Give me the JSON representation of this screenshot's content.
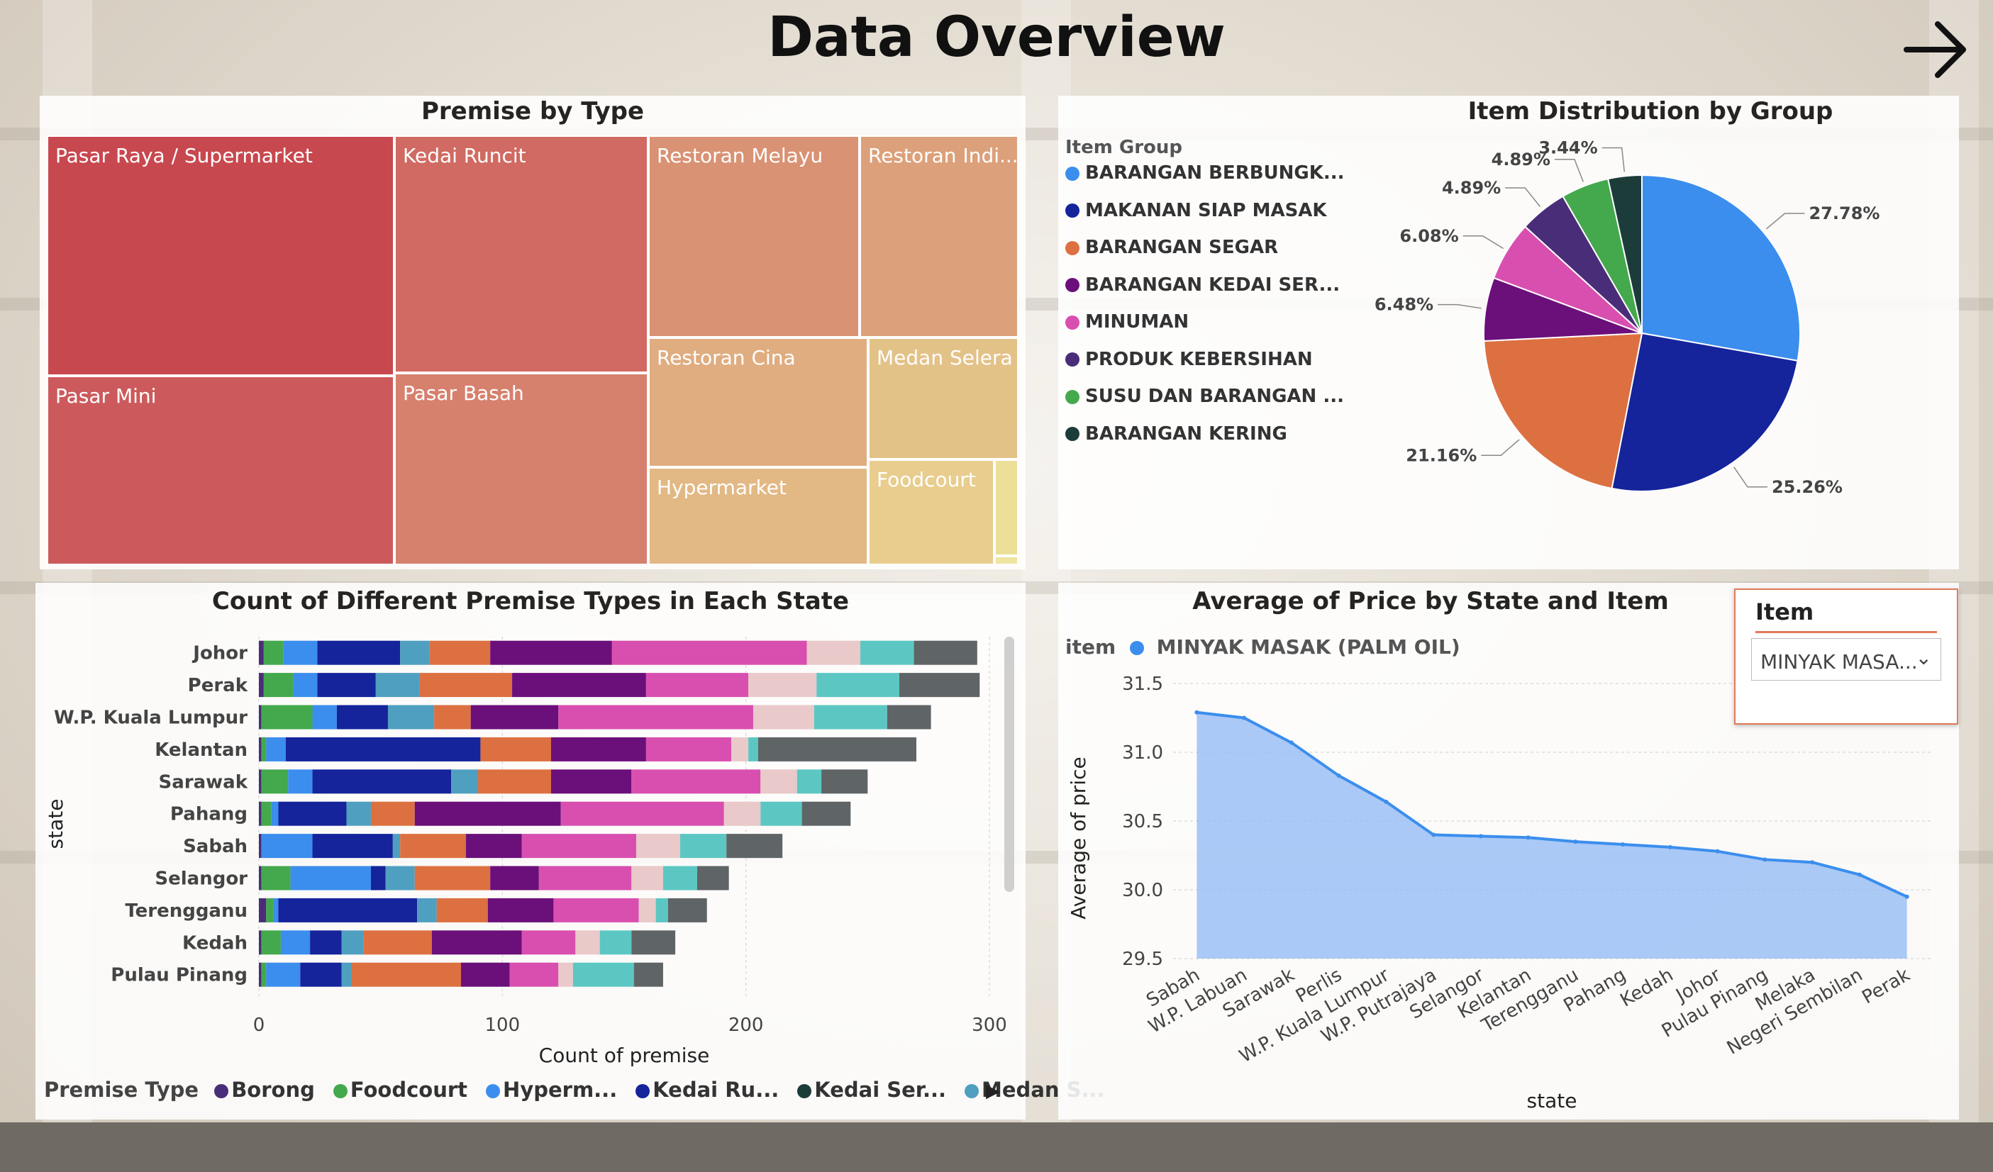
{
  "page_title": "Data Overview",
  "treemap": {
    "title": "Premise by Type",
    "cells": [
      {
        "label": "Pasar Raya / Supermarket",
        "color": "#c8484f"
      },
      {
        "label": "Pasar Mini",
        "color": "#cc5a5c"
      },
      {
        "label": "Kedai Runcit",
        "color": "#d06a62"
      },
      {
        "label": "Pasar Basah",
        "color": "#d6806e"
      },
      {
        "label": "Restoran Melayu",
        "color": "#d99274"
      },
      {
        "label": "Restoran Indi...",
        "color": "#dca07a"
      },
      {
        "label": "Restoran Cina",
        "color": "#dfad80"
      },
      {
        "label": "Medan Selera",
        "color": "#e3c288"
      },
      {
        "label": "Hypermarket",
        "color": "#e2b884"
      },
      {
        "label": "Foodcourt",
        "color": "#e8cd8e"
      },
      {
        "label": "",
        "color": "#ecdf98"
      },
      {
        "label": "",
        "color": "#efe4a0"
      }
    ]
  },
  "pie": {
    "title": "Item Distribution by Group",
    "legend_title": "Item Group",
    "legend": [
      {
        "label": "BARANGAN BERBUNGK...",
        "color": "#3b8eed"
      },
      {
        "label": "MAKANAN SIAP MASAK",
        "color": "#15249b"
      },
      {
        "label": "BARANGAN SEGAR",
        "color": "#dd7040"
      },
      {
        "label": "BARANGAN KEDAI SER...",
        "color": "#6b0f7a"
      },
      {
        "label": "MINUMAN",
        "color": "#d94fb0"
      },
      {
        "label": "PRODUK KEBERSIHAN",
        "color": "#4a2d78"
      },
      {
        "label": "SUSU DAN BARANGAN ...",
        "color": "#43a94c"
      },
      {
        "label": "BARANGAN KERING",
        "color": "#1c3c3a"
      }
    ]
  },
  "bar": {
    "title": "Count of Different Premise Types in Each State",
    "xlabel": "Count of premise",
    "ylabel": "state",
    "legend_title": "Premise Type",
    "legend": [
      {
        "label": "Borong",
        "color": "#4a2d78"
      },
      {
        "label": "Foodcourt",
        "color": "#43a94c"
      },
      {
        "label": "Hyperm...",
        "color": "#3b8eed"
      },
      {
        "label": "Kedai Ru...",
        "color": "#15249b"
      },
      {
        "label": "Kedai Ser...",
        "color": "#1c3c3a"
      },
      {
        "label": "Medan S...",
        "color": "#4f9fc0"
      }
    ]
  },
  "line": {
    "title": "Average of Price by State and Item",
    "legend_title": "item",
    "legend_item": "MINYAK MASAK (PALM OIL)",
    "xlabel": "state",
    "ylabel": "Average of price",
    "color": "#3b8eed"
  },
  "slicer": {
    "title": "Item",
    "value": "MINYAK MASA..."
  },
  "chart_data": [
    {
      "type": "treemap",
      "title": "Premise by Type",
      "categories": [
        "Pasar Raya / Supermarket",
        "Kedai Runcit",
        "Pasar Mini",
        "Pasar Basah",
        "Restoran Melayu",
        "Restoran Indi...",
        "Restoran Cina",
        "Hypermarket",
        "Medan Selera",
        "Foodcourt"
      ]
    },
    {
      "type": "pie",
      "title": "Item Distribution by Group",
      "categories": [
        "BARANGAN BERBUNGK...",
        "MAKANAN SIAP MASAK",
        "BARANGAN SEGAR",
        "BARANGAN KEDAI SER...",
        "MINUMAN",
        "PRODUK KEBERSIHAN",
        "SUSU DAN BARANGAN ...",
        "BARANGAN KERING"
      ],
      "values": [
        27.78,
        25.26,
        21.16,
        6.48,
        6.08,
        4.89,
        4.89,
        3.44
      ],
      "labels": [
        "27.78%",
        "25.26%",
        "21.16%",
        "6.48%",
        "6.08%",
        "4.89%",
        "4.89%",
        "3.44%"
      ],
      "colors": [
        "#3b8eed",
        "#15249b",
        "#dd7040",
        "#6b0f7a",
        "#d94fb0",
        "#4a2d78",
        "#43a94c",
        "#1c3c3a"
      ]
    },
    {
      "type": "bar",
      "orientation": "horizontal",
      "stacked": true,
      "title": "Count of Different Premise Types in Each State",
      "xlabel": "Count of premise",
      "ylabel": "state",
      "xlim": [
        0,
        300
      ],
      "xticks": [
        0,
        100,
        200,
        300
      ],
      "categories": [
        "Johor",
        "Perak",
        "W.P. Kuala Lumpur",
        "Kelantan",
        "Sarawak",
        "Pahang",
        "Sabah",
        "Selangor",
        "Terengganu",
        "Kedah",
        "Pulau Pinang"
      ],
      "segment_colors": [
        "#4a2d78",
        "#43a94c",
        "#3b8eed",
        "#15249b",
        "#4f9fc0",
        "#dd7040",
        "#6b0f7a",
        "#d94fb0",
        "#e9c9c9",
        "#5cc7c2",
        "#5f6466"
      ],
      "values": [
        [
          2,
          8,
          14,
          34,
          12,
          25,
          50,
          80,
          22,
          22,
          26
        ],
        [
          2,
          12,
          10,
          24,
          18,
          38,
          55,
          42,
          28,
          34,
          33
        ],
        [
          1,
          21,
          10,
          21,
          19,
          15,
          36,
          80,
          25,
          30,
          18
        ],
        [
          1,
          2,
          8,
          80,
          0,
          29,
          39,
          35,
          7,
          4,
          65
        ],
        [
          1,
          11,
          10,
          57,
          11,
          30,
          33,
          53,
          15,
          10,
          19
        ],
        [
          1,
          4,
          3,
          28,
          10,
          18,
          60,
          67,
          15,
          17,
          20
        ],
        [
          1,
          0,
          21,
          33,
          3,
          27,
          23,
          47,
          18,
          19,
          23
        ],
        [
          1,
          12,
          33,
          6,
          12,
          31,
          20,
          38,
          13,
          14,
          13
        ],
        [
          3,
          3,
          2,
          57,
          8,
          21,
          27,
          35,
          7,
          5,
          16
        ],
        [
          1,
          8,
          12,
          13,
          9,
          28,
          37,
          22,
          10,
          13,
          18
        ],
        [
          1,
          2,
          14,
          17,
          4,
          45,
          20,
          20,
          6,
          25,
          12
        ]
      ]
    },
    {
      "type": "area",
      "title": "Average of Price by State and Item",
      "series_name": "MINYAK MASAK (PALM OIL)",
      "xlabel": "state",
      "ylabel": "Average of price",
      "ylim": [
        29.5,
        31.5
      ],
      "yticks": [
        29.5,
        30.0,
        30.5,
        31.0,
        31.5
      ],
      "categories": [
        "Sabah",
        "W.P. Labuan",
        "Sarawak",
        "Perlis",
        "W.P. Kuala Lumpur",
        "W.P. Putrajaya",
        "Selangor",
        "Kelantan",
        "Terengganu",
        "Pahang",
        "Kedah",
        "Johor",
        "Pulau Pinang",
        "Melaka",
        "Negeri Sembilan",
        "Perak"
      ],
      "values": [
        31.29,
        31.25,
        31.07,
        30.83,
        30.64,
        30.4,
        30.39,
        30.38,
        30.35,
        30.33,
        30.31,
        30.28,
        30.22,
        30.2,
        30.11,
        29.95
      ]
    }
  ]
}
